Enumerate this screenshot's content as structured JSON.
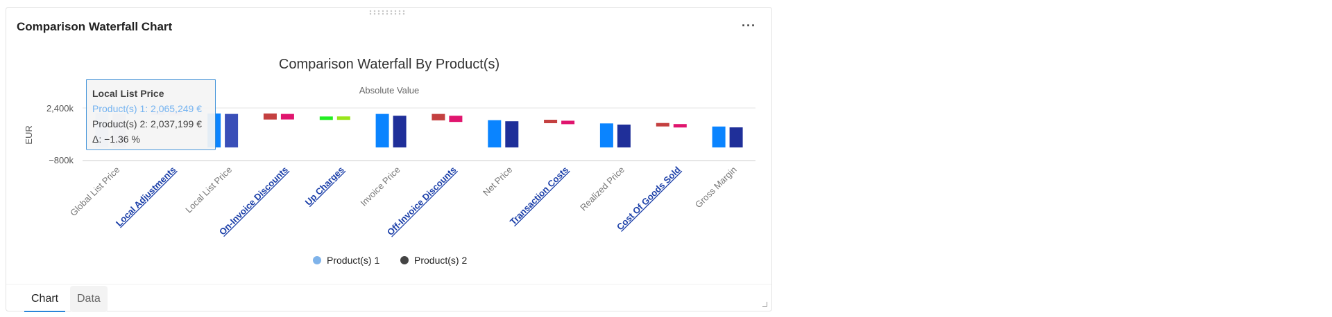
{
  "panel": {
    "title": "Comparison Waterfall Chart",
    "more_label": "···"
  },
  "tabs": {
    "chart": "Chart",
    "data": "Data"
  },
  "tooltip": {
    "title": "Local List Price",
    "line1": "Product(s) 1: 2,065,249 €",
    "line2": "Product(s) 2: 2,037,199 €",
    "line3": "Δ: −1.36 %"
  },
  "chart_data": {
    "type": "bar",
    "title": "Comparison Waterfall By Product(s)",
    "subtitle": "Absolute Value",
    "ylabel": "EUR",
    "xlabel": "",
    "ylim": [
      -800,
      2400
    ],
    "yticks": [
      "2,400k",
      "−800k"
    ],
    "categories": [
      {
        "label": "Global List Price",
        "link": false
      },
      {
        "label": "Local Adjustments",
        "link": true
      },
      {
        "label": "Local List Price",
        "link": false
      },
      {
        "label": "On-Invoice Discounts",
        "link": true
      },
      {
        "label": "Up Charges",
        "link": true
      },
      {
        "label": "Invoice Price",
        "link": false
      },
      {
        "label": "Off-Invoice Discounts",
        "link": true
      },
      {
        "label": "Net Price",
        "link": false
      },
      {
        "label": "Transaction Costs",
        "link": true
      },
      {
        "label": "Realized Price",
        "link": false
      },
      {
        "label": "Cost Of Goods Sold",
        "link": true
      },
      {
        "label": "Gross Margin",
        "link": false
      }
    ],
    "series": [
      {
        "name": "Product(s) 1",
        "legend_color": "#7fb3ea",
        "bars": [
          {
            "start": 0,
            "end": 2100,
            "color": "#b8d6f5"
          },
          {
            "start": 2100,
            "end": 2065,
            "color": "#c7c7e8"
          },
          {
            "start": 0,
            "end": 2065,
            "color": "#0a84ff"
          },
          {
            "start": 2065,
            "end": 1700,
            "color": "#c44040"
          },
          {
            "start": 1700,
            "end": 1850,
            "color": "#22ee22"
          },
          {
            "start": 0,
            "end": 2040,
            "color": "#0a84ff"
          },
          {
            "start": 2040,
            "end": 1650,
            "color": "#c44040"
          },
          {
            "start": 0,
            "end": 1660,
            "color": "#0a84ff"
          },
          {
            "start": 1660,
            "end": 1500,
            "color": "#c44040"
          },
          {
            "start": 0,
            "end": 1460,
            "color": "#0a84ff"
          },
          {
            "start": 1460,
            "end": 1300,
            "color": "#c44040"
          },
          {
            "start": 0,
            "end": 1270,
            "color": "#0a84ff"
          }
        ]
      },
      {
        "name": "Product(s) 2",
        "legend_color": "#444444",
        "bars": [
          {
            "start": 0,
            "end": 2070,
            "color": "#c9c2e4"
          },
          {
            "start": 2070,
            "end": 2037,
            "color": "#e8c8dc"
          },
          {
            "start": 0,
            "end": 2037,
            "color": "#3a4fb8"
          },
          {
            "start": 2037,
            "end": 1700,
            "color": "#e0156e"
          },
          {
            "start": 1700,
            "end": 1860,
            "color": "#99e61a"
          },
          {
            "start": 0,
            "end": 1930,
            "color": "#1f2f99"
          },
          {
            "start": 1930,
            "end": 1550,
            "color": "#e0156e"
          },
          {
            "start": 0,
            "end": 1590,
            "color": "#1f2f99"
          },
          {
            "start": 1590,
            "end": 1450,
            "color": "#e0156e"
          },
          {
            "start": 0,
            "end": 1390,
            "color": "#1f2f99"
          },
          {
            "start": 1390,
            "end": 1250,
            "color": "#e0156e"
          },
          {
            "start": 0,
            "end": 1220,
            "color": "#1f2f99"
          }
        ]
      }
    ],
    "legend": {
      "position": "bottom"
    },
    "grid": false,
    "link_color": "#1a3ea8"
  }
}
